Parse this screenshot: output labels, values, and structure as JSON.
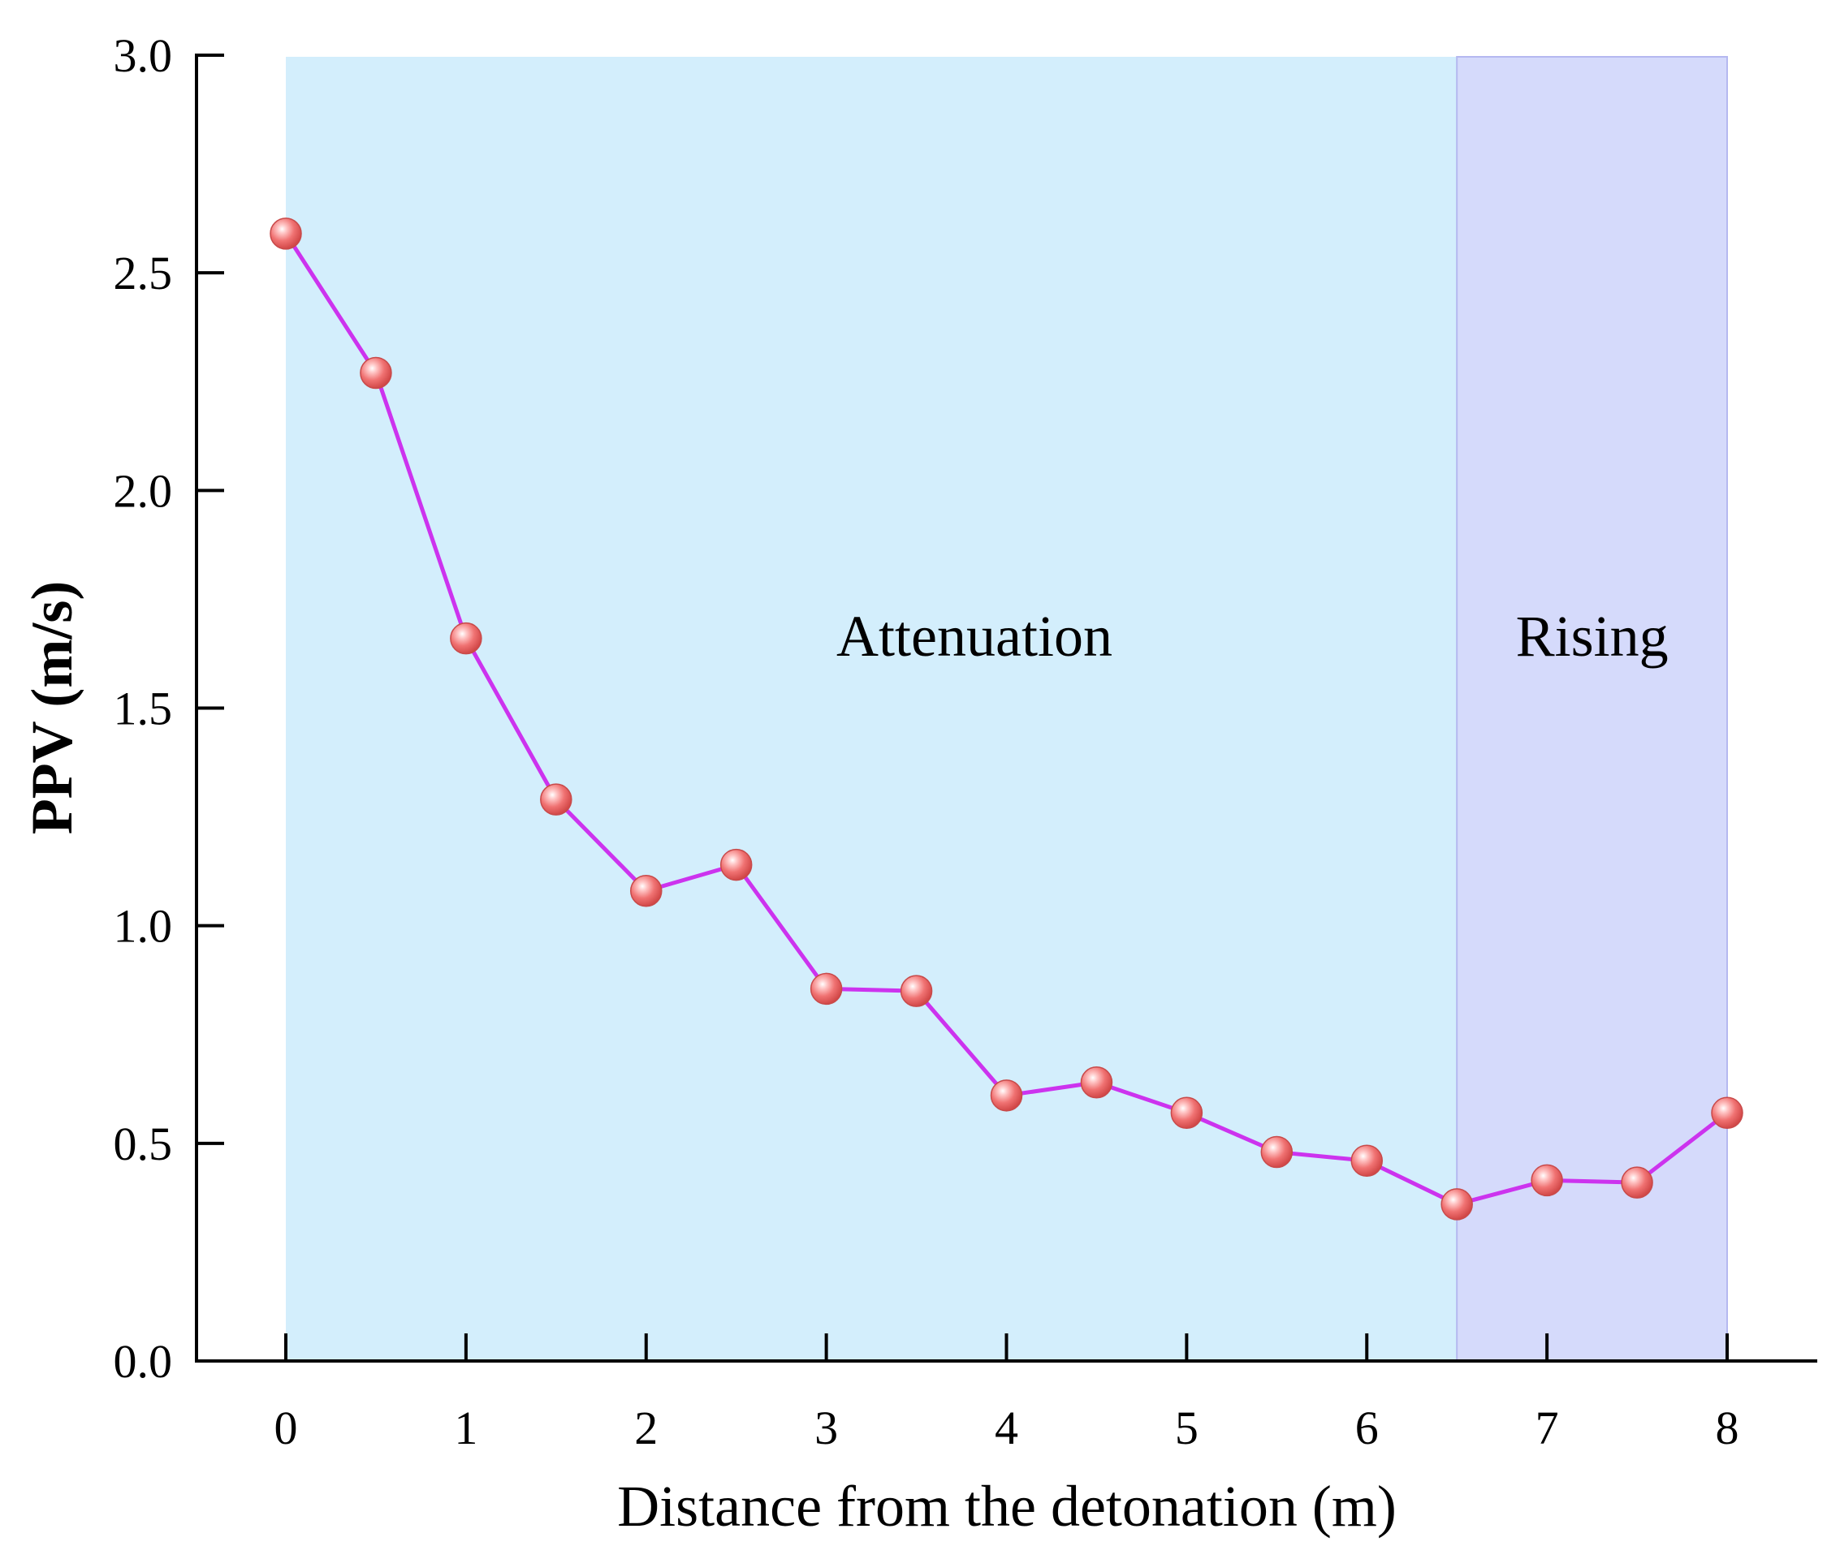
{
  "chart_data": {
    "type": "line",
    "title": "",
    "xlabel": "Distance from the detonation (m)",
    "ylabel": "PPV (m/s)",
    "xlim": [
      -0.5,
      8.5
    ],
    "ylim": [
      0,
      3.0
    ],
    "x_ticks": [
      "0",
      "1",
      "2",
      "3",
      "4",
      "5",
      "6",
      "7",
      "8"
    ],
    "y_ticks": [
      "0.0",
      "0.5",
      "1.0",
      "1.5",
      "2.0",
      "2.5",
      "3.0"
    ],
    "grid": false,
    "legend": "none",
    "series": [
      {
        "name": "PPV",
        "x": [
          0,
          0.5,
          1,
          1.5,
          2,
          2.5,
          3,
          3.5,
          4,
          4.5,
          5,
          5.5,
          6,
          6.5,
          7,
          7.5,
          8
        ],
        "y": [
          2.59,
          2.27,
          1.66,
          1.29,
          1.08,
          1.14,
          0.855,
          0.85,
          0.61,
          0.64,
          0.57,
          0.48,
          0.46,
          0.36,
          0.415,
          0.41,
          0.57
        ]
      }
    ],
    "regions": [
      {
        "label": "Attenuation",
        "x_start": 0,
        "x_end": 6.5,
        "color": "#d3eefc"
      },
      {
        "label": "Rising",
        "x_start": 6.5,
        "x_end": 8,
        "color": "#d5dafb"
      }
    ],
    "colors": {
      "line": "#cc33ee",
      "marker": "#f07070",
      "axis": "#000000"
    }
  }
}
